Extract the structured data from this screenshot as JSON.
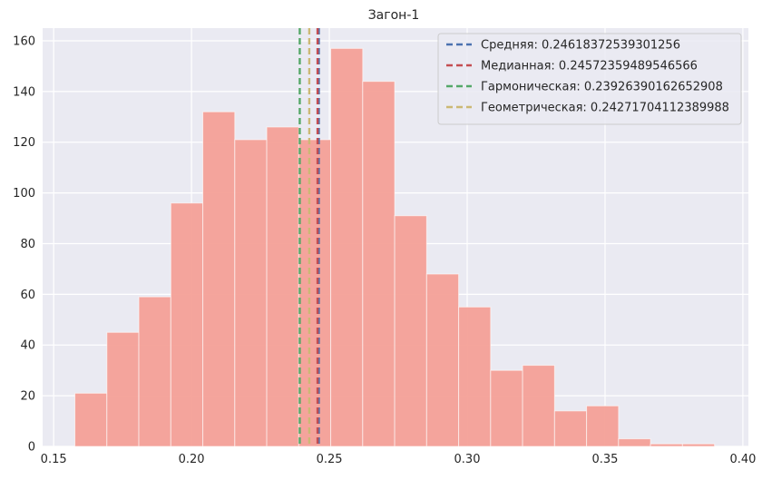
{
  "chart_data": {
    "type": "bar",
    "title": "Загон-1",
    "xlabel": "",
    "ylabel": "",
    "xlim": [
      0.146,
      0.402
    ],
    "ylim": [
      0,
      165
    ],
    "xticks": [
      0.15,
      0.2,
      0.25,
      0.3,
      0.35,
      0.4
    ],
    "xtick_labels": [
      "0.15",
      "0.20",
      "0.25",
      "0.30",
      "0.35",
      "0.40"
    ],
    "yticks": [
      0,
      20,
      40,
      60,
      80,
      100,
      120,
      140,
      160
    ],
    "ytick_labels": [
      "0",
      "20",
      "40",
      "60",
      "80",
      "100",
      "120",
      "140",
      "160"
    ],
    "grid": true,
    "bar_color": "#f4a097",
    "bins": [
      {
        "x0": 0.1577,
        "x1": 0.1693,
        "value": 21
      },
      {
        "x0": 0.1693,
        "x1": 0.1809,
        "value": 45
      },
      {
        "x0": 0.1809,
        "x1": 0.1925,
        "value": 59
      },
      {
        "x0": 0.1925,
        "x1": 0.2041,
        "value": 96
      },
      {
        "x0": 0.2041,
        "x1": 0.2157,
        "value": 132
      },
      {
        "x0": 0.2157,
        "x1": 0.2273,
        "value": 121
      },
      {
        "x0": 0.2273,
        "x1": 0.2389,
        "value": 126
      },
      {
        "x0": 0.2389,
        "x1": 0.2505,
        "value": 121
      },
      {
        "x0": 0.2505,
        "x1": 0.2621,
        "value": 157
      },
      {
        "x0": 0.2621,
        "x1": 0.2737,
        "value": 144
      },
      {
        "x0": 0.2737,
        "x1": 0.2853,
        "value": 91
      },
      {
        "x0": 0.2853,
        "x1": 0.2969,
        "value": 68
      },
      {
        "x0": 0.2969,
        "x1": 0.3085,
        "value": 55
      },
      {
        "x0": 0.3085,
        "x1": 0.3201,
        "value": 30
      },
      {
        "x0": 0.3201,
        "x1": 0.3317,
        "value": 32
      },
      {
        "x0": 0.3317,
        "x1": 0.3433,
        "value": 14
      },
      {
        "x0": 0.3433,
        "x1": 0.3549,
        "value": 16
      },
      {
        "x0": 0.3549,
        "x1": 0.3665,
        "value": 3
      },
      {
        "x0": 0.3665,
        "x1": 0.3781,
        "value": 1
      },
      {
        "x0": 0.3781,
        "x1": 0.3897,
        "value": 1
      }
    ],
    "vlines": [
      {
        "name": "Средняя: 0.24618372539301256",
        "x": 0.24618372539301256,
        "color": "#4c72b0"
      },
      {
        "name": "Медианная: 0.24572359489546566",
        "x": 0.24572359489546566,
        "color": "#c44e52"
      },
      {
        "name": "Гармоническая: 0.23926390162652908",
        "x": 0.23926390162652908,
        "color": "#55a868"
      },
      {
        "name": "Геометрическая: 0.24271704112389988",
        "x": 0.24271704112389988,
        "color": "#ccb974"
      }
    ],
    "legend_position": "top-right"
  }
}
